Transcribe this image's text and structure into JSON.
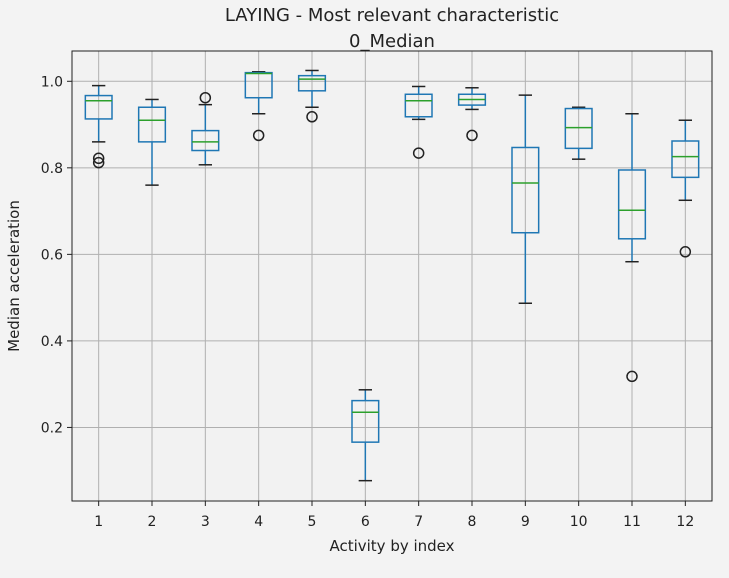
{
  "chart_data": {
    "type": "boxplot",
    "title": "LAYING - Most relevant characteristic",
    "subtitle": "0_Median",
    "xlabel": "Activity by index",
    "ylabel": "Median acceleration",
    "categories": [
      "1",
      "2",
      "3",
      "4",
      "5",
      "6",
      "7",
      "8",
      "9",
      "10",
      "11",
      "12"
    ],
    "ylim": [
      0.03,
      1.07
    ],
    "yticks": [
      0.2,
      0.4,
      0.6,
      0.8,
      1.0
    ],
    "ytick_labels": [
      "0.2",
      "0.4",
      "0.6",
      "0.8",
      "1.0"
    ],
    "grid": true,
    "colors": {
      "box": "#1f77b4",
      "median": "#2ca02c",
      "flier": "#222222",
      "grid": "#b0b0b0",
      "frame": "#222222"
    },
    "boxes": [
      {
        "category": "1",
        "whisker_low": 0.86,
        "q1": 0.913,
        "median": 0.955,
        "q3": 0.967,
        "whisker_high": 0.99,
        "fliers": [
          0.812,
          0.822
        ]
      },
      {
        "category": "2",
        "whisker_low": 0.76,
        "q1": 0.86,
        "median": 0.91,
        "q3": 0.94,
        "whisker_high": 0.958,
        "fliers": []
      },
      {
        "category": "3",
        "whisker_low": 0.807,
        "q1": 0.84,
        "median": 0.86,
        "q3": 0.886,
        "whisker_high": 0.946,
        "fliers": [
          0.962
        ]
      },
      {
        "category": "4",
        "whisker_low": 0.925,
        "q1": 0.962,
        "median": 1.018,
        "q3": 1.02,
        "whisker_high": 1.022,
        "fliers": [
          0.875
        ]
      },
      {
        "category": "5",
        "whisker_low": 0.94,
        "q1": 0.978,
        "median": 1.005,
        "q3": 1.013,
        "whisker_high": 1.025,
        "fliers": [
          0.918
        ]
      },
      {
        "category": "6",
        "whisker_low": 0.077,
        "q1": 0.166,
        "median": 0.235,
        "q3": 0.262,
        "whisker_high": 0.287,
        "fliers": []
      },
      {
        "category": "7",
        "whisker_low": 0.912,
        "q1": 0.918,
        "median": 0.955,
        "q3": 0.97,
        "whisker_high": 0.988,
        "fliers": [
          0.834
        ]
      },
      {
        "category": "8",
        "whisker_low": 0.935,
        "q1": 0.945,
        "median": 0.958,
        "q3": 0.97,
        "whisker_high": 0.985,
        "fliers": [
          0.875
        ]
      },
      {
        "category": "9",
        "whisker_low": 0.487,
        "q1": 0.65,
        "median": 0.765,
        "q3": 0.847,
        "whisker_high": 0.968,
        "fliers": []
      },
      {
        "category": "10",
        "whisker_low": 0.82,
        "q1": 0.845,
        "median": 0.893,
        "q3": 0.937,
        "whisker_high": 0.94,
        "fliers": []
      },
      {
        "category": "11",
        "whisker_low": 0.583,
        "q1": 0.636,
        "median": 0.702,
        "q3": 0.795,
        "whisker_high": 0.925,
        "fliers": [
          0.318
        ]
      },
      {
        "category": "12",
        "whisker_low": 0.725,
        "q1": 0.778,
        "median": 0.826,
        "q3": 0.862,
        "whisker_high": 0.91,
        "fliers": [
          0.606
        ]
      }
    ]
  }
}
